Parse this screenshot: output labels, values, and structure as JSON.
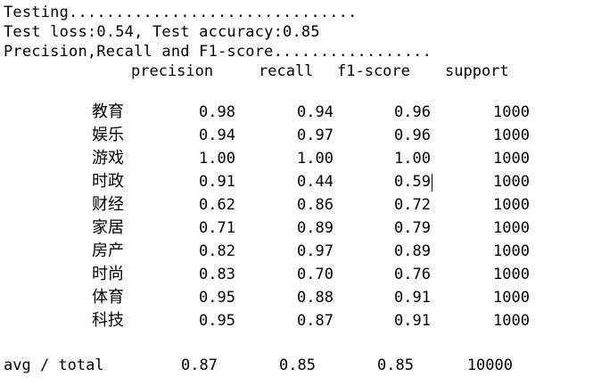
{
  "console": {
    "lines": [
      "Testing...............................",
      "Test loss:0.54, Test accuracy:0.85",
      "Precision,Recall and F1-score................."
    ],
    "headers": {
      "precision": "precision",
      "recall": "recall",
      "f1": "f1-score",
      "support": "support"
    },
    "rows": [
      {
        "label": "教育",
        "precision": "0.98",
        "recall": "0.94",
        "f1": "0.96",
        "support": "1000"
      },
      {
        "label": "娱乐",
        "precision": "0.94",
        "recall": "0.97",
        "f1": "0.96",
        "support": "1000"
      },
      {
        "label": "游戏",
        "precision": "1.00",
        "recall": "1.00",
        "f1": "1.00",
        "support": "1000"
      },
      {
        "label": "时政",
        "precision": "0.91",
        "recall": "0.44",
        "f1": "0.59",
        "support": "1000"
      },
      {
        "label": "财经",
        "precision": "0.62",
        "recall": "0.86",
        "f1": "0.72",
        "support": "1000"
      },
      {
        "label": "家居",
        "precision": "0.71",
        "recall": "0.89",
        "f1": "0.79",
        "support": "1000"
      },
      {
        "label": "房产",
        "precision": "0.82",
        "recall": "0.97",
        "f1": "0.89",
        "support": "1000"
      },
      {
        "label": "时尚",
        "precision": "0.83",
        "recall": "0.70",
        "f1": "0.76",
        "support": "1000"
      },
      {
        "label": "体育",
        "precision": "0.95",
        "recall": "0.88",
        "f1": "0.91",
        "support": "1000"
      },
      {
        "label": "科技",
        "precision": "0.95",
        "recall": "0.87",
        "f1": "0.91",
        "support": "1000"
      }
    ],
    "summary": {
      "label": "avg / total",
      "precision": "0.87",
      "recall": "0.85",
      "f1": "0.85",
      "support": "10000"
    }
  }
}
